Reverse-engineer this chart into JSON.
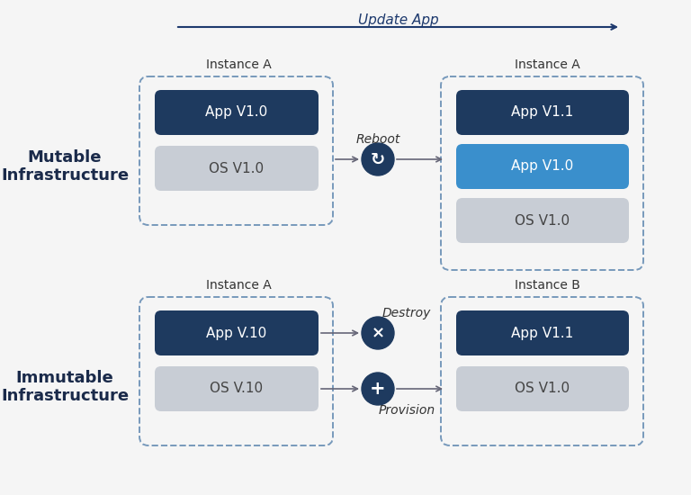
{
  "bg_color": "#f5f5f5",
  "title_arrow_text": "Update App",
  "title_arrow_color": "#1e3a6e",
  "dark_blue": "#1e3a5f",
  "mid_blue": "#3a8fcc",
  "gray_bg": "#c8cdd5",
  "dashed_border": "#8899aa",
  "mutable_label": "Mutable\nInfrastructure",
  "immutable_label": "Immutable\nInfrastructure",
  "reboot_label": "Reboot",
  "destroy_label": "Destroy",
  "provision_label": "Provision",
  "mut_before_boxes": [
    {
      "label": "App V1.0",
      "color": "#1e3a5f",
      "text_color": "#ffffff"
    },
    {
      "label": "OS V1.0",
      "color": "#c8cdd5",
      "text_color": "#444444"
    }
  ],
  "mut_after_boxes": [
    {
      "label": "App V1.1",
      "color": "#1e3a5f",
      "text_color": "#ffffff"
    },
    {
      "label": "App V1.0",
      "color": "#3a8fcc",
      "text_color": "#ffffff"
    },
    {
      "label": "OS V1.0",
      "color": "#c8cdd5",
      "text_color": "#444444"
    }
  ],
  "imm_before_boxes": [
    {
      "label": "App V.10",
      "color": "#1e3a5f",
      "text_color": "#ffffff"
    },
    {
      "label": "OS V.10",
      "color": "#c8cdd5",
      "text_color": "#444444"
    }
  ],
  "imm_after_boxes": [
    {
      "label": "App V1.1",
      "color": "#1e3a5f",
      "text_color": "#ffffff"
    },
    {
      "label": "OS V1.0",
      "color": "#c8cdd5",
      "text_color": "#444444"
    }
  ],
  "instance_labels": {
    "mut_before": "Instance A",
    "mut_after": "Instance A",
    "imm_before": "Instance A",
    "imm_after": "Instance B"
  }
}
